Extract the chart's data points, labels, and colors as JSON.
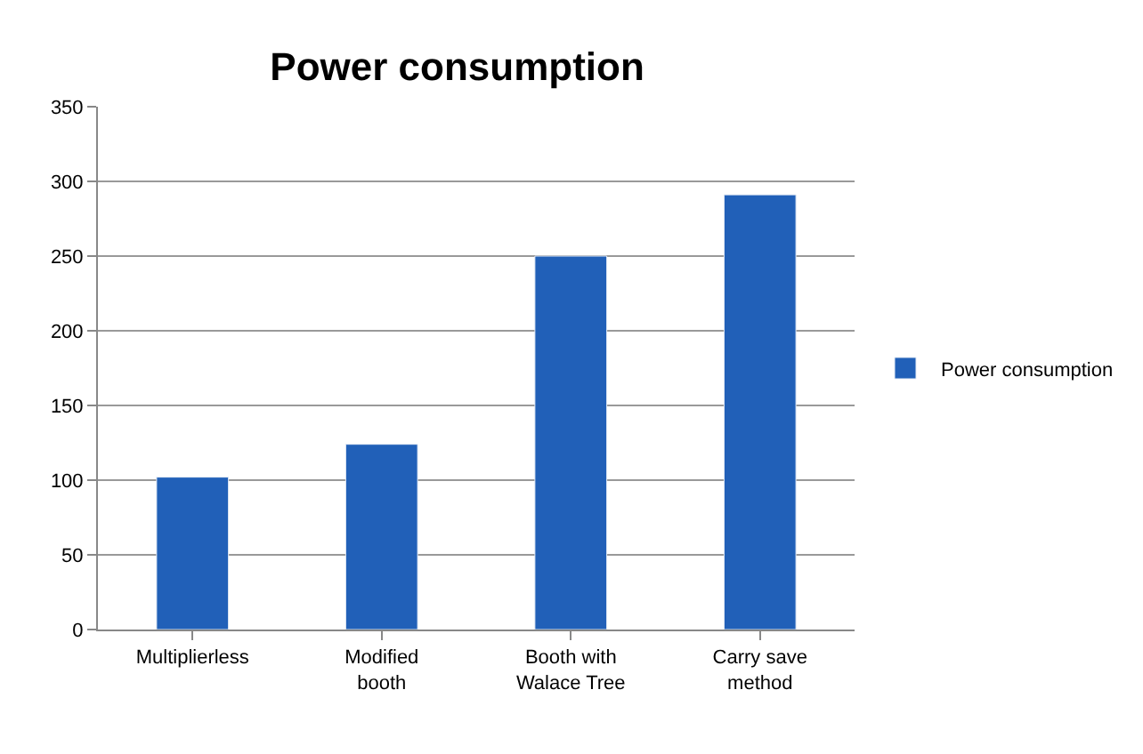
{
  "chart_data": {
    "type": "bar",
    "title": "Power consumption",
    "categories": [
      "Multiplierless",
      "Modified booth",
      "Booth with Walace Tree",
      "Carry save method"
    ],
    "series": [
      {
        "name": "Power consumption",
        "color": "#2160b8",
        "values": [
          102,
          124,
          250,
          291
        ]
      }
    ],
    "ylim": [
      0,
      350
    ],
    "yticks": [
      0,
      50,
      100,
      150,
      200,
      250,
      300,
      350
    ],
    "grid": "y",
    "legend": "right"
  }
}
